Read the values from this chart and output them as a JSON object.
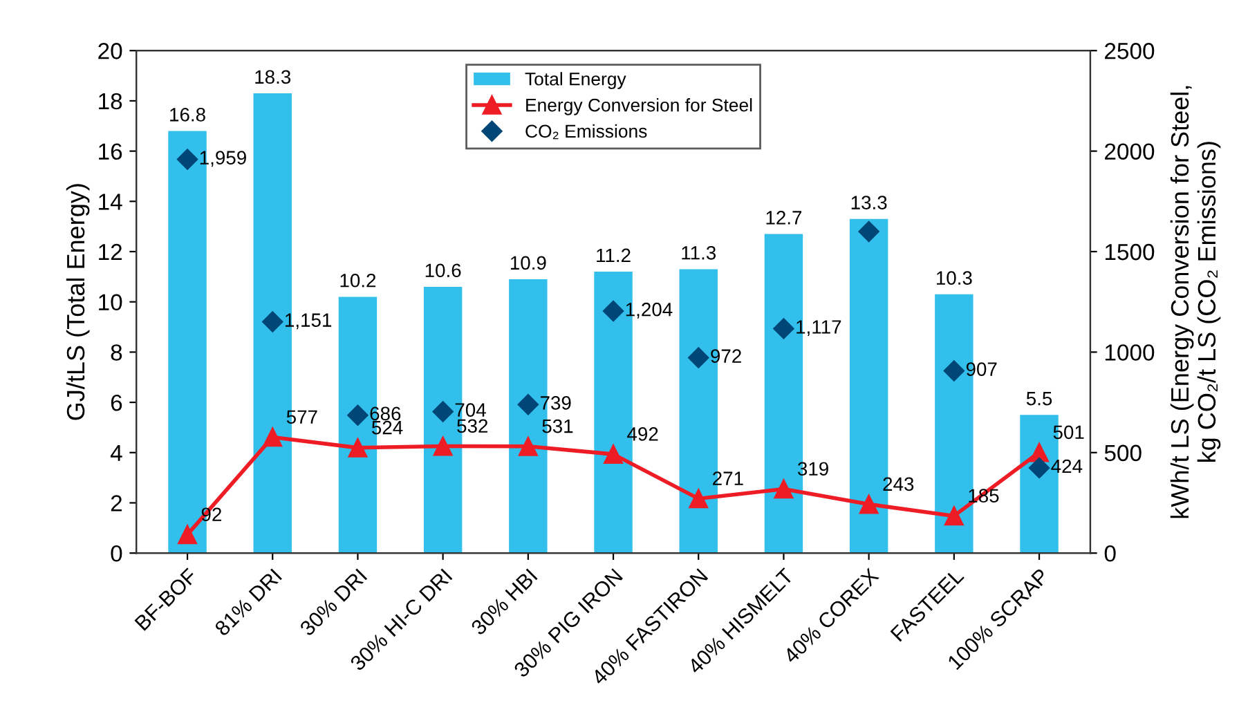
{
  "chart_data": {
    "type": "bar",
    "ylabel": "GJ/tLS (Total Energy)",
    "y2label": "kWh/t LS (Energy Conversion for Steel,\nkg CO₂/t LS (CO₂ Emissions)",
    "categories": [
      "BF-BOF",
      "81% DRI",
      "30% DRI",
      "30% HI-C DRI",
      "30% HBI",
      "30% PIG IRON",
      "40% FASTIRON",
      "40% HISMELT",
      "40% COREX",
      "FASTEEL",
      "100% SCRAP"
    ],
    "series": [
      {
        "name": "Total Energy",
        "color": "#33bfeb",
        "values": [
          16.8,
          18.3,
          10.2,
          10.6,
          10.9,
          11.2,
          11.3,
          12.7,
          13.3,
          10.3,
          5.5
        ],
        "value_labels": [
          "16.8",
          "18.3",
          "10.2",
          "10.6",
          "10.9",
          "11.2",
          "11.3",
          "12.7",
          "13.3",
          "10.3",
          "5.5"
        ]
      },
      {
        "name": "Energy Conversion for Steel",
        "type": "line",
        "axis": "y2",
        "color": "#ee1c25",
        "marker": "triangle",
        "line_style": "solid",
        "values": [
          92,
          577,
          524,
          532,
          531,
          492,
          271,
          319,
          243,
          185,
          501
        ],
        "value_labels": [
          "92",
          "577",
          "524",
          "532",
          "531",
          "492",
          "271",
          "319",
          "243",
          "185",
          "501"
        ]
      },
      {
        "name": "CO₂ Emissions",
        "type": "scatter",
        "axis": "y2",
        "color": "#004677",
        "marker": "diamond",
        "values": [
          1959,
          1151,
          686,
          704,
          739,
          1204,
          972,
          1117,
          1600,
          907,
          424
        ],
        "value_labels": [
          "1,959",
          "1,151",
          "686",
          "704",
          "739",
          "1,204",
          "972",
          "1,117",
          null,
          "907",
          "424"
        ]
      }
    ],
    "ylim": [
      0,
      20
    ],
    "yticks": [
      0,
      2,
      4,
      6,
      8,
      10,
      12,
      14,
      16,
      18,
      20
    ],
    "y2lim": [
      0,
      2500
    ],
    "y2ticks": [
      0,
      500,
      1000,
      1500,
      2000,
      2500
    ],
    "grid": false,
    "legend": "top"
  }
}
